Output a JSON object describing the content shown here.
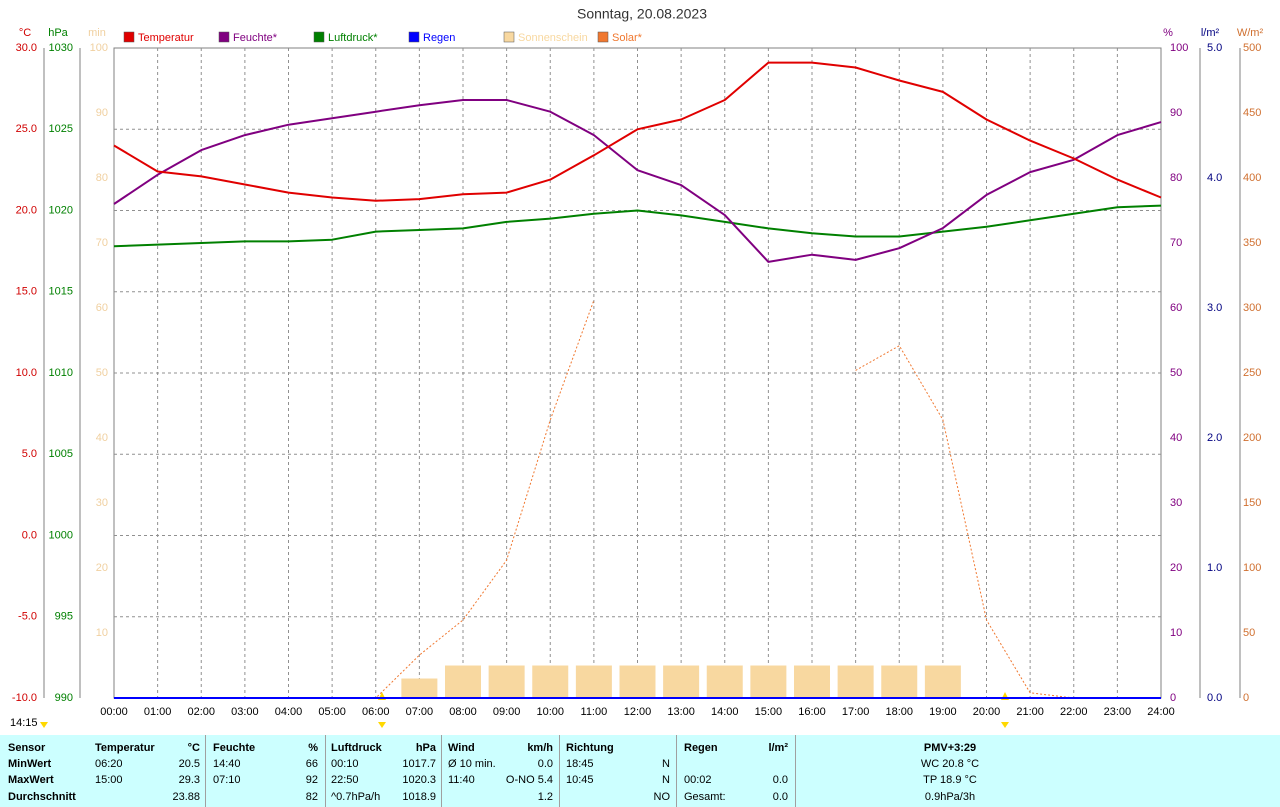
{
  "chart_data": {
    "type": "line",
    "title": "Sonntag, 20.08.2023",
    "x": [
      0,
      1,
      2,
      3,
      4,
      5,
      6,
      7,
      8,
      9,
      10,
      11,
      12,
      13,
      14,
      15,
      16,
      17,
      18,
      19,
      20,
      21,
      22,
      23,
      24
    ],
    "xlim": [
      0,
      24
    ],
    "xticks": [
      {
        "value": 0,
        "label": "00:00"
      },
      {
        "value": 1,
        "label": "01:00"
      },
      {
        "value": 2,
        "label": "02:00"
      },
      {
        "value": 3,
        "label": "03:00"
      },
      {
        "value": 4,
        "label": "04:00"
      },
      {
        "value": 5,
        "label": "05:00"
      },
      {
        "value": 6,
        "label": "06:00"
      },
      {
        "value": 7,
        "label": "07:00"
      },
      {
        "value": 8,
        "label": "08:00"
      },
      {
        "value": 9,
        "label": "09:00"
      },
      {
        "value": 10,
        "label": "10:00"
      },
      {
        "value": 11,
        "label": "11:00"
      },
      {
        "value": 12,
        "label": "12:00"
      },
      {
        "value": 13,
        "label": "13:00"
      },
      {
        "value": 14,
        "label": "14:00"
      },
      {
        "value": 15,
        "label": "15:00"
      },
      {
        "value": 16,
        "label": "16:00"
      },
      {
        "value": 17,
        "label": "17:00"
      },
      {
        "value": 18,
        "label": "18:00"
      },
      {
        "value": 19,
        "label": "19:00"
      },
      {
        "value": 20,
        "label": "20:00"
      },
      {
        "value": 21,
        "label": "21:00"
      },
      {
        "value": 22,
        "label": "22:00"
      },
      {
        "value": 23,
        "label": "23:00"
      },
      {
        "value": 24,
        "label": "24:00"
      }
    ],
    "grid": true,
    "ylabel": "°C",
    "ylim": [
      -10,
      30
    ],
    "yticks": [
      {
        "value": 30,
        "label": "30.0"
      },
      {
        "value": 25,
        "label": "25.0"
      },
      {
        "value": 20,
        "label": "20.0"
      },
      {
        "value": 15,
        "label": "15.0"
      },
      {
        "value": 10,
        "label": "10.0"
      },
      {
        "value": 5,
        "label": "5.0"
      },
      {
        "value": 0,
        "label": "0.0"
      },
      {
        "value": -5,
        "label": "-5.0"
      },
      {
        "value": -10,
        "label": "-10.0"
      }
    ],
    "y2label": "hPa",
    "y2lim": [
      990,
      1030
    ],
    "y2ticks": [
      1030,
      1025,
      1020,
      1015,
      1010,
      1005,
      1000,
      995,
      990
    ],
    "y3label": "min",
    "y3lim": [
      0,
      100
    ],
    "y3ticks": [
      100,
      90,
      80,
      70,
      60,
      50,
      40,
      30,
      20,
      10
    ],
    "y4label": "%",
    "y4lim": [
      0,
      100
    ],
    "y4ticks": [
      100,
      90,
      80,
      70,
      60,
      50,
      40,
      30,
      20,
      10,
      0
    ],
    "y5label": "l/m²",
    "y5lim": [
      0,
      5
    ],
    "y5ticks": [
      {
        "value": 5,
        "label": "5.0"
      },
      {
        "value": 4,
        "label": "4.0"
      },
      {
        "value": 3,
        "label": "3.0"
      },
      {
        "value": 2,
        "label": "2.0"
      },
      {
        "value": 1,
        "label": "1.0"
      },
      {
        "value": 0,
        "label": "0.0"
      }
    ],
    "y6label": "W/m²",
    "y6lim": [
      0,
      500
    ],
    "y6ticks": [
      500,
      450,
      400,
      350,
      300,
      250,
      200,
      150,
      100,
      50,
      0
    ],
    "series": [
      {
        "name": "Temperatur",
        "color": "#e00000",
        "axis": "y",
        "values": [
          24.0,
          22.4,
          22.1,
          21.6,
          21.1,
          20.8,
          20.6,
          20.7,
          21.0,
          21.1,
          21.9,
          23.4,
          25.0,
          25.6,
          26.8,
          29.1,
          29.1,
          28.8,
          28.0,
          27.3,
          25.6,
          24.3,
          23.2,
          21.9,
          20.8
        ]
      },
      {
        "name": "Feuchte*",
        "color": "#800080",
        "axis": "y4",
        "values": [
          76,
          80.5,
          84.3,
          86.6,
          88.2,
          89.2,
          90.2,
          91.2,
          92,
          92,
          90.2,
          86.6,
          81.2,
          78.9,
          74.3,
          67.1,
          68.2,
          67.4,
          69.2,
          72.3,
          77.4,
          80.9,
          82.8,
          86.6,
          88.6
        ]
      },
      {
        "name": "Luftdruck*",
        "color": "#008000",
        "axis": "y2",
        "values": [
          1017.8,
          1017.9,
          1018.0,
          1018.1,
          1018.1,
          1018.2,
          1018.7,
          1018.8,
          1018.9,
          1019.3,
          1019.5,
          1019.8,
          1020.0,
          1019.7,
          1019.3,
          1018.9,
          1018.6,
          1018.4,
          1018.4,
          1018.7,
          1019.0,
          1019.4,
          1019.8,
          1020.2,
          1020.3
        ]
      },
      {
        "name": "Regen",
        "color": "#0000ff",
        "axis": "y5",
        "values": [
          0,
          0,
          0,
          0,
          0,
          0,
          0,
          0,
          0,
          0,
          0,
          0,
          0,
          0,
          0,
          0,
          0,
          0,
          0,
          0,
          0,
          0,
          0,
          0,
          0
        ]
      },
      {
        "name": "Sonnenschein",
        "color": "#f8d8a0",
        "axis": "y3",
        "kind": "bar",
        "values": [
          0,
          0,
          0,
          0,
          0,
          0,
          0,
          3,
          5,
          5,
          5,
          5,
          5,
          5,
          5,
          5,
          5,
          5,
          5,
          5,
          0,
          0,
          0,
          0,
          0
        ]
      },
      {
        "name": "Solar*",
        "color": "#f07830",
        "axis": "y6",
        "style": "dotted",
        "values": [
          0,
          0,
          0,
          0,
          0,
          0,
          0,
          33,
          60,
          106,
          214,
          306,
          null,
          null,
          null,
          null,
          null,
          252,
          271,
          214,
          60,
          4,
          0,
          0,
          0
        ]
      }
    ]
  },
  "updated": "14:15",
  "table": {
    "header": [
      [
        "Sensor"
      ],
      [
        "Temperatur",
        "°C"
      ],
      [
        "Feuchte",
        "%"
      ],
      [
        "Luftdruck",
        "hPa"
      ],
      [
        "Wind",
        "km/h"
      ],
      [
        "Richtung"
      ],
      [
        "Regen",
        "l/m²"
      ],
      [
        "PMV+3:29"
      ]
    ],
    "rows": [
      [
        [
          "MinWert"
        ],
        [
          "06:20",
          "20.5"
        ],
        [
          "14:40",
          "66"
        ],
        [
          "00:10",
          "1017.7"
        ],
        [
          "Ø 10 min.",
          "0.0"
        ],
        [
          "18:45",
          "N"
        ],
        [],
        [
          "WC 20.8 °C"
        ]
      ],
      [
        [
          "MaxWert"
        ],
        [
          "15:00",
          "29.3"
        ],
        [
          "07:10",
          "92"
        ],
        [
          "22:50",
          "1020.3"
        ],
        [
          "11:40",
          "O-NO 5.4"
        ],
        [
          "10:45",
          "N"
        ],
        [
          "00:02",
          "0.0"
        ],
        [
          "TP 18.9 °C"
        ]
      ],
      [
        [
          "Durchschnitt"
        ],
        [
          "",
          "23.88"
        ],
        [
          "",
          "82"
        ],
        [
          "^0.7hPa/h",
          "1018.9"
        ],
        [
          "",
          "1.2"
        ],
        [
          "",
          "NO"
        ],
        [
          "Gesamt:",
          "0.0"
        ],
        [
          "0.9hPa/3h"
        ]
      ]
    ]
  }
}
